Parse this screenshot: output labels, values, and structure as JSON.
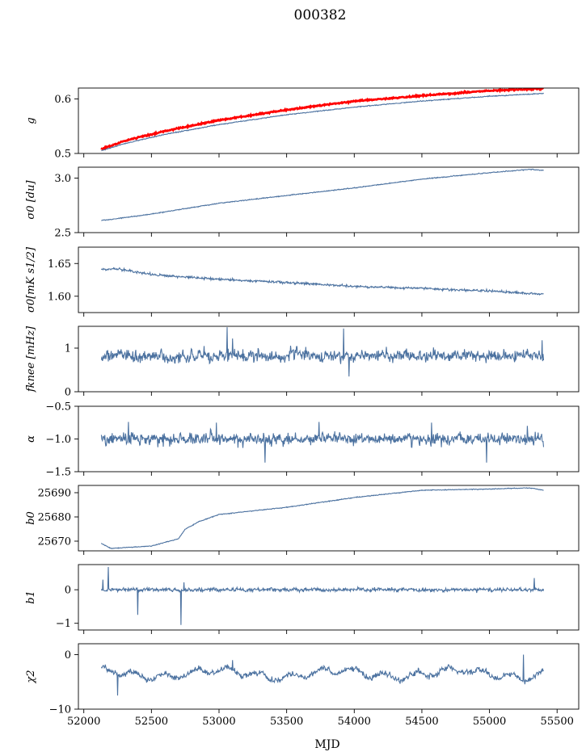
{
  "figure": {
    "title": "000382",
    "xlabel": "MJD"
  },
  "chart_data": {
    "type": "line",
    "title": "000382",
    "xlabel": "MJD",
    "xlim": [
      51960,
      55660
    ],
    "x_ticks": [
      52000,
      52500,
      53000,
      53500,
      54000,
      54500,
      55000,
      55500
    ],
    "x_tick_labels": [
      "52000",
      "52500",
      "53000",
      "53500",
      "54000",
      "54500",
      "55000",
      "55500"
    ],
    "x_start": 52130,
    "x_end": 55400,
    "grid": false,
    "line_color": "#4c72a0",
    "panels": [
      {
        "ylabel": "g",
        "ylim": [
          0.5,
          0.62
        ],
        "y_ticks": [
          0.5,
          0.6
        ],
        "y_tick_labels": [
          "0.5",
          "0.6"
        ],
        "series": [
          {
            "color": "#ff0000",
            "kind": "smooth",
            "noise": 0.0012,
            "knots": [
              [
                52130,
                0.508
              ],
              [
                52300,
                0.523
              ],
              [
                52600,
                0.541
              ],
              [
                53000,
                0.561
              ],
              [
                53500,
                0.58
              ],
              [
                54000,
                0.596
              ],
              [
                54500,
                0.606
              ],
              [
                55000,
                0.615
              ],
              [
                55400,
                0.619
              ]
            ]
          },
          {
            "color": "#4c72a0",
            "kind": "smooth",
            "noise": 0.0008,
            "knots": [
              [
                52130,
                0.505
              ],
              [
                52300,
                0.518
              ],
              [
                52600,
                0.535
              ],
              [
                53000,
                0.553
              ],
              [
                53500,
                0.571
              ],
              [
                54000,
                0.585
              ],
              [
                54500,
                0.596
              ],
              [
                55000,
                0.605
              ],
              [
                55400,
                0.61
              ]
            ]
          }
        ]
      },
      {
        "ylabel": "σ0 [du]",
        "ylim": [
          2.5,
          3.1
        ],
        "y_ticks": [
          2.5,
          3.0
        ],
        "y_tick_labels": [
          "2.5",
          "3.0"
        ],
        "series": [
          {
            "color": "#4c72a0",
            "kind": "smooth",
            "noise": 0.004,
            "knots": [
              [
                52130,
                2.61
              ],
              [
                52500,
                2.67
              ],
              [
                53000,
                2.77
              ],
              [
                53500,
                2.84
              ],
              [
                54000,
                2.91
              ],
              [
                54500,
                2.99
              ],
              [
                55000,
                3.05
              ],
              [
                55300,
                3.08
              ],
              [
                55400,
                3.07
              ]
            ]
          }
        ]
      },
      {
        "ylabel": "σ0[mK s1/2]",
        "ylim": [
          1.575,
          1.675
        ],
        "y_ticks": [
          1.6,
          1.65
        ],
        "y_tick_labels": [
          "1.60",
          "1.65"
        ],
        "series": [
          {
            "color": "#4c72a0",
            "kind": "smooth",
            "noise": 0.0018,
            "knots": [
              [
                52130,
                1.641
              ],
              [
                52250,
                1.642
              ],
              [
                52500,
                1.633
              ],
              [
                53000,
                1.626
              ],
              [
                53500,
                1.621
              ],
              [
                54000,
                1.615
              ],
              [
                54500,
                1.612
              ],
              [
                55000,
                1.608
              ],
              [
                55400,
                1.603
              ]
            ]
          }
        ]
      },
      {
        "ylabel": "fknee [mHz]",
        "ylim": [
          0,
          1.5
        ],
        "y_ticks": [
          0,
          1
        ],
        "y_tick_labels": [
          "0",
          "1"
        ],
        "series": [
          {
            "color": "#4c72a0",
            "kind": "noisy",
            "base": 0.82,
            "noise": 0.16,
            "spikes": [
              [
                53060,
                1.48
              ],
              [
                53100,
                1.22
              ],
              [
                53920,
                1.45
              ],
              [
                53960,
                0.35
              ],
              [
                55390,
                1.18
              ]
            ]
          }
        ]
      },
      {
        "ylabel": "α",
        "ylim": [
          -1.5,
          -0.5
        ],
        "y_ticks": [
          -1.5,
          -1.0,
          -0.5
        ],
        "y_tick_labels": [
          "−1.5",
          "−1.0",
          "−0.5"
        ],
        "series": [
          {
            "color": "#4c72a0",
            "kind": "noisy",
            "base": -1.0,
            "noise": 0.1,
            "spikes": [
              [
                52330,
                -0.74
              ],
              [
                52980,
                -0.75
              ],
              [
                53340,
                -1.36
              ],
              [
                53740,
                -0.74
              ],
              [
                54570,
                -0.75
              ],
              [
                54980,
                -1.36
              ],
              [
                55280,
                -0.8
              ]
            ]
          }
        ]
      },
      {
        "ylabel": "b0",
        "ylim": [
          25666,
          25693
        ],
        "y_ticks": [
          25670,
          25680,
          25690
        ],
        "y_tick_labels": [
          "25670",
          "25680",
          "25690"
        ],
        "series": [
          {
            "color": "#4c72a0",
            "kind": "smooth",
            "noise": 0.15,
            "knots": [
              [
                52130,
                25669
              ],
              [
                52200,
                25667
              ],
              [
                52500,
                25668
              ],
              [
                52700,
                25671
              ],
              [
                52750,
                25675
              ],
              [
                52850,
                25678
              ],
              [
                53000,
                25681
              ],
              [
                53500,
                25684
              ],
              [
                54000,
                25688
              ],
              [
                54500,
                25691
              ],
              [
                55000,
                25691.5
              ],
              [
                55300,
                25692
              ],
              [
                55400,
                25691
              ]
            ]
          }
        ]
      },
      {
        "ylabel": "b1",
        "ylim": [
          -1.2,
          0.75
        ],
        "y_ticks": [
          -1,
          0
        ],
        "y_tick_labels": [
          "−1",
          "0"
        ],
        "series": [
          {
            "color": "#4c72a0",
            "kind": "noisy",
            "base": 0.0,
            "noise": 0.06,
            "spikes": [
              [
                52140,
                0.3
              ],
              [
                52180,
                0.68
              ],
              [
                52400,
                -0.75
              ],
              [
                52720,
                -1.05
              ],
              [
                52740,
                0.22
              ],
              [
                55330,
                0.35
              ]
            ]
          }
        ]
      },
      {
        "ylabel": "χ2",
        "ylim": [
          -10,
          2
        ],
        "y_ticks": [
          -10,
          0
        ],
        "y_tick_labels": [
          "−10",
          "0"
        ],
        "series": [
          {
            "color": "#4c72a0",
            "kind": "noisy",
            "base": -3.5,
            "noise": 0.6,
            "wave": 1.0,
            "spikes": [
              [
                52250,
                -7.5
              ],
              [
                53100,
                -1.0
              ],
              [
                55250,
                0.0
              ]
            ]
          }
        ]
      }
    ]
  }
}
